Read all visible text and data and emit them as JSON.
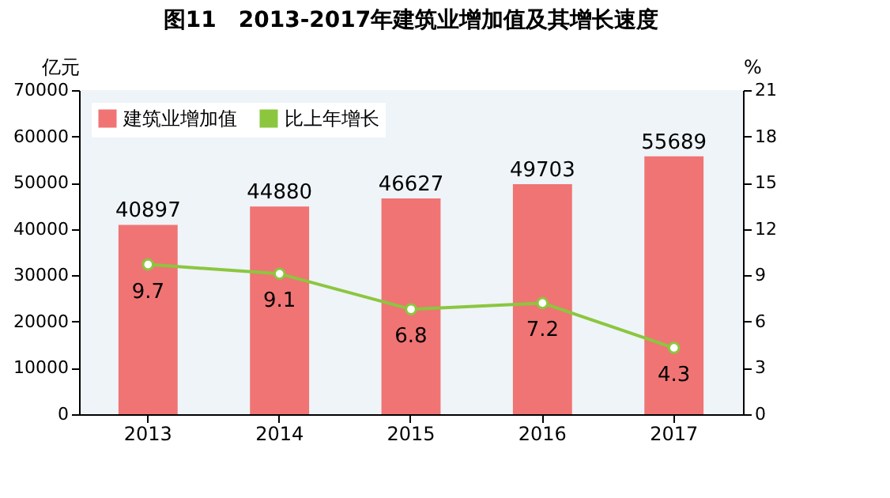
{
  "chart_data": {
    "type": "bar",
    "title": "图11　2013-2017年建筑业增加值及其增长速度",
    "ylabel": "亿元",
    "y2label": "%",
    "categories": [
      "2013",
      "2014",
      "2015",
      "2016",
      "2017"
    ],
    "series": [
      {
        "name": "建筑业增加值",
        "color": "#f07474",
        "values": [
          40897,
          44880,
          46627,
          49703,
          55689
        ]
      },
      {
        "name": "比上年增长",
        "type": "line",
        "axis": "y2",
        "color": "#8cc63f",
        "values": [
          9.7,
          9.1,
          6.8,
          7.2,
          4.3
        ]
      }
    ],
    "ylim": [
      0,
      70000
    ],
    "yticks": [
      0,
      10000,
      20000,
      30000,
      40000,
      50000,
      60000,
      70000
    ],
    "y2lim": [
      0,
      21
    ],
    "y2ticks": [
      0,
      3,
      6,
      9,
      12,
      15,
      18,
      21
    ],
    "data_labels": true,
    "legend": "top left",
    "marker": "circle",
    "grid": false
  }
}
